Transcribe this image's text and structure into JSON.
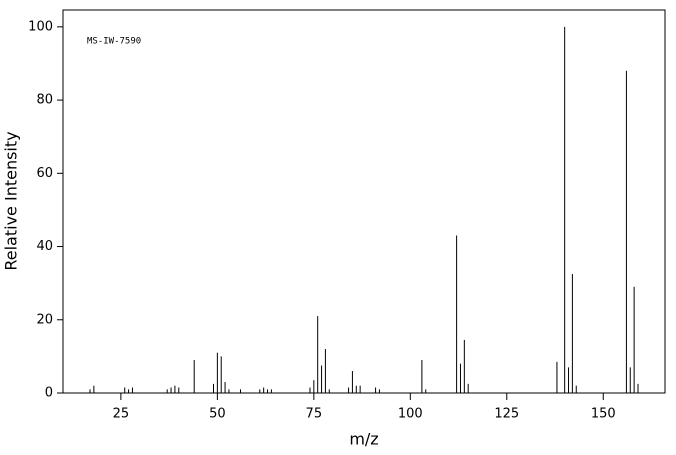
{
  "chart_data": {
    "type": "bar",
    "annotation": "MS-IW-7590",
    "x_label": "m/z",
    "y_label": "Relative Intensity",
    "x": [
      17,
      18,
      26,
      27,
      28,
      37,
      38,
      39,
      40,
      44,
      49,
      50,
      51,
      52,
      53,
      56,
      61,
      62,
      63,
      64,
      74,
      75,
      76,
      77,
      78,
      79,
      84,
      85,
      86,
      87,
      91,
      92,
      103,
      104,
      112,
      113,
      114,
      115,
      138,
      140,
      141,
      142,
      143,
      156,
      157,
      158,
      159
    ],
    "values": [
      1,
      2,
      1.5,
      1,
      1.5,
      1,
      1.5,
      2,
      1.5,
      9,
      2.5,
      11,
      10,
      3,
      1,
      1,
      1,
      1.5,
      1,
      1,
      1.5,
      3.5,
      21,
      7.5,
      12,
      1,
      1.5,
      6,
      2,
      2,
      1.5,
      1,
      9,
      1,
      43,
      8,
      14.5,
      2.5,
      8.5,
      100,
      7,
      32.5,
      2,
      88,
      7,
      29,
      2.5
    ],
    "color": "#000000",
    "xlim": [
      10,
      166
    ],
    "xticks": [
      25,
      50,
      75,
      100,
      125,
      150
    ],
    "ylim": [
      0,
      104.6
    ],
    "yticks": [
      0,
      20,
      40,
      60,
      80,
      100
    ]
  }
}
